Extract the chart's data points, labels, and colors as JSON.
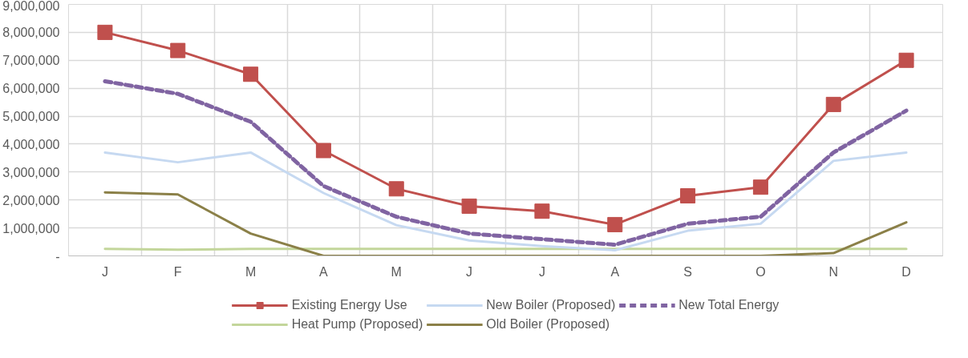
{
  "chart_data": {
    "type": "line",
    "categories": [
      "J",
      "F",
      "M",
      "A",
      "M",
      "J",
      "J",
      "A",
      "S",
      "O",
      "N",
      "D"
    ],
    "ylim": [
      0,
      9000000
    ],
    "yticks": [
      {
        "value": 0,
        "label": "-"
      },
      {
        "value": 1000000,
        "label": "1,000,000"
      },
      {
        "value": 2000000,
        "label": "2,000,000"
      },
      {
        "value": 3000000,
        "label": "3,000,000"
      },
      {
        "value": 4000000,
        "label": "4,000,000"
      },
      {
        "value": 5000000,
        "label": "5,000,000"
      },
      {
        "value": 6000000,
        "label": "6,000,000"
      },
      {
        "value": 7000000,
        "label": "7,000,000"
      },
      {
        "value": 8000000,
        "label": "8,000,000"
      },
      {
        "value": 9000000,
        "label": "9,000,000"
      }
    ],
    "grid": true,
    "legend": "bottom",
    "series": [
      {
        "name": "Existing Energy Use",
        "color": "#c0504d",
        "marker": "square",
        "line_style": "solid",
        "values": [
          8000000,
          7350000,
          6500000,
          3770000,
          2400000,
          1780000,
          1600000,
          1120000,
          2150000,
          2460000,
          5420000,
          7000000
        ]
      },
      {
        "name": "Heat Pump (Proposed)",
        "color": "#c3d69b",
        "marker": "none",
        "line_style": "solid",
        "values": [
          250000,
          220000,
          250000,
          250000,
          250000,
          250000,
          250000,
          250000,
          250000,
          250000,
          250000,
          250000
        ]
      },
      {
        "name": "New Boiler (Proposed)",
        "color": "#c6d9f1",
        "marker": "none",
        "line_style": "solid",
        "values": [
          3700000,
          3350000,
          3700000,
          2250000,
          1100000,
          550000,
          350000,
          200000,
          900000,
          1150000,
          3400000,
          3700000
        ]
      },
      {
        "name": "Old Boiler (Proposed)",
        "color": "#8b8048",
        "marker": "none",
        "line_style": "solid",
        "values": [
          2270000,
          2200000,
          800000,
          0,
          0,
          0,
          0,
          0,
          0,
          0,
          100000,
          1200000
        ]
      },
      {
        "name": "New Total Energy",
        "color": "#8064a2",
        "marker": "none",
        "line_style": "dashed",
        "values": [
          6250000,
          5800000,
          4800000,
          2500000,
          1400000,
          800000,
          600000,
          400000,
          1150000,
          1400000,
          3700000,
          5200000
        ]
      }
    ]
  }
}
